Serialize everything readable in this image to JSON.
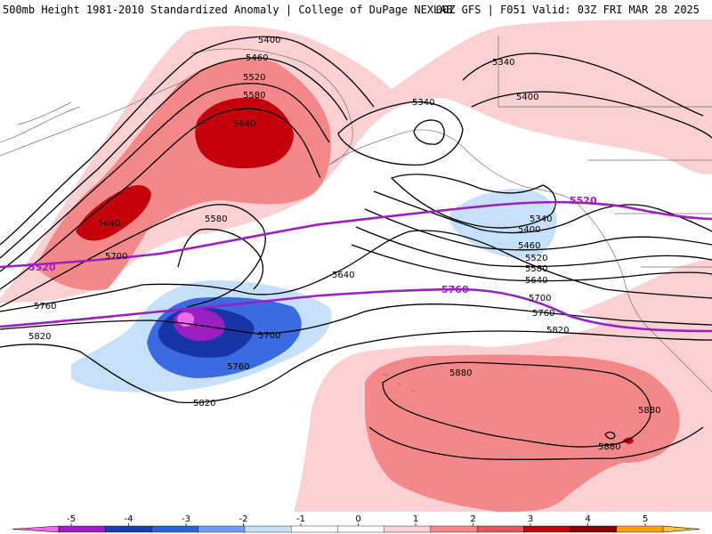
{
  "header": {
    "title_left": "500mb Height 1981-2010 Standardized Anomaly | College of DuPage NEXLAB",
    "title_right": "00Z GFS | F051 Valid: 03Z FRI MAR 28 2025"
  },
  "contour_labels": [
    "5400",
    "5460",
    "5520",
    "5580",
    "5640",
    "5340",
    "5340",
    "5400",
    "5340",
    "5400",
    "5460",
    "5520",
    "5580",
    "5640",
    "5700",
    "5760",
    "5820",
    "5580",
    "5640",
    "5700",
    "5760",
    "5820",
    "5640",
    "5700",
    "5760",
    "5820",
    "5880",
    "5880",
    "5880"
  ],
  "highlight_labels": [
    "5520",
    "5520",
    "5760"
  ],
  "colorbar": {
    "ticks": [
      "-5",
      "-4",
      "-3",
      "-2",
      "-1",
      "0",
      "1",
      "2",
      "3",
      "4",
      "5"
    ],
    "colors": [
      "#ec6bec",
      "#9b1fc0",
      "#1840b0",
      "#2a63d6",
      "#6e9cf0",
      "#c6e0fa",
      "#ffffff",
      "#ffffff",
      "#fbd0d2",
      "#f48888",
      "#e5575e",
      "#c4000d",
      "#8a0000",
      "#f7a100",
      "#f0c040"
    ]
  },
  "anomaly_colors": {
    "pos1": "#fbd0d2",
    "pos2": "#f48888",
    "pos3": "#c4000d",
    "neg1": "#c6e0fa",
    "neg2": "#3a6be0",
    "neg3": "#1636a8",
    "neg4": "#9b1fc0",
    "neg5": "#ec6bec",
    "highlight": "#9b1fc0"
  }
}
